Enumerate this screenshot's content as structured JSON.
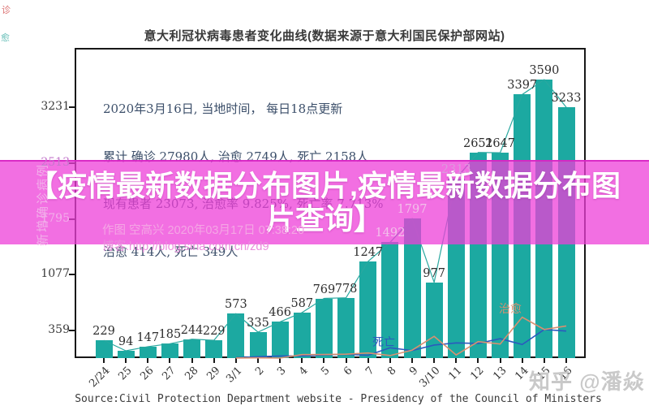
{
  "title": "意大利冠状病毒患者变化曲线(数据来源于意大利国民保护部网站)",
  "info_box": {
    "lines": [
      "2020年3月16日, 当地时间， 每日18点更新",
      "累计 确诊 27980人, 治愈 2749人, 死亡 2158人",
      "现有患者 23073, 治愈率 9.825%, 死亡率 7.713%",
      "治愈 414人, 死亡 349人"
    ]
  },
  "overlay_banner": {
    "full_text": "【疫情最新数据分布图片,疫情最新数据分布图片查询】",
    "line1": "【疫情最新数据分布图片,疫情最新数据分布图",
    "line2": "片查询】",
    "color": "#ed3fd8"
  },
  "watermarks": {
    "author_line": "作图 空高兴 2020年03月17日 07:38:20",
    "blog_line": "博客:http://blog.sina.com.cn/zd9",
    "zhihu": "知乎 @潘焱"
  },
  "source_caption": "Source:Civil Protection Department website - Presidency of the Council of Ministers",
  "edge_marks": {
    "red_char": "诊",
    "teal_char": "愈"
  },
  "chart_data": {
    "type": "bar",
    "title": "意大利冠状病毒患者变化曲线(数据来源于意大利国民保护部网站)",
    "xlabel": "",
    "ylabel": "新增确诊病例",
    "categories": [
      "2/24",
      "25",
      "26",
      "27",
      "28",
      "29",
      "3/1",
      "2",
      "3",
      "4",
      "5",
      "6",
      "7",
      "8",
      "9",
      "3/10",
      "11",
      "12",
      "13",
      "14",
      "15",
      "16"
    ],
    "values": [
      229,
      94,
      147,
      185,
      244,
      229,
      573,
      335,
      466,
      587,
      769,
      778,
      1247,
      1492,
      1797,
      977,
      2313,
      2651,
      2647,
      3397,
      3590,
      3233
    ],
    "yticks": [
      359,
      1077,
      1795,
      2513,
      3231
    ],
    "ylim": [
      0,
      4000
    ],
    "grid": false,
    "bar_color": "#1ca9a1",
    "trend_line_color": "#2aa8a0",
    "series": [
      {
        "name": "死亡",
        "type": "line",
        "color": "#2b5abe",
        "values": [
          null,
          null,
          null,
          null,
          null,
          null,
          5,
          18,
          27,
          28,
          41,
          49,
          36,
          133,
          97,
          168,
          196,
          189,
          250,
          175,
          368,
          349
        ]
      },
      {
        "name": "治愈",
        "type": "line",
        "color": "#d89070",
        "values": [
          null,
          null,
          null,
          null,
          null,
          null,
          1,
          3,
          0,
          45,
          46,
          50,
          66,
          33,
          102,
          280,
          41,
          213,
          181,
          527,
          369,
          414
        ]
      }
    ]
  }
}
